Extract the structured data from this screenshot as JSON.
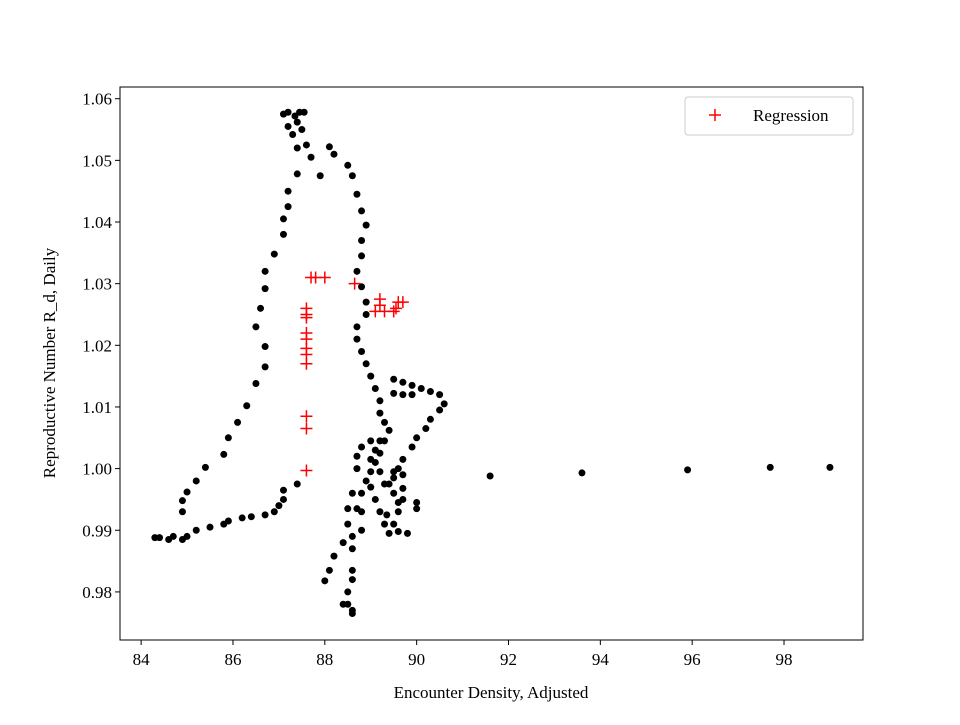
{
  "chart_data": {
    "type": "scatter",
    "xlabel": "Encounter Density, Adjusted",
    "ylabel": "Reproductive Number R_d, Daily",
    "xlim": [
      83.54,
      99.72
    ],
    "ylim": [
      0.9722,
      1.0619
    ],
    "xticks": [
      84,
      86,
      88,
      90,
      92,
      94,
      96,
      98
    ],
    "yticks": [
      0.98,
      0.99,
      {
        "value": 1,
        "label": "1.00"
      },
      1.01,
      1.02,
      1.03,
      1.04,
      1.05,
      1.06
    ],
    "legend": "upper right",
    "series": [
      {
        "color": "#000000",
        "marker": "dot",
        "x": [
          84.3,
          84.4,
          84.6,
          84.7,
          84.9,
          85.0,
          85.2,
          85.5,
          85.8,
          85.9,
          86.2,
          86.4,
          86.7,
          86.9,
          87.0,
          87.1,
          87.1,
          87.4,
          84.9,
          84.9,
          85.0,
          85.2,
          85.4,
          85.8,
          85.9,
          86.1,
          86.3,
          86.5,
          86.7,
          86.7,
          86.5,
          86.6,
          86.7,
          86.7,
          86.9,
          87.1,
          87.1,
          87.2,
          87.2,
          87.4,
          87.4,
          87.3,
          87.2,
          87.1,
          87.2,
          87.35,
          87.45,
          87.55,
          87.4,
          87.5,
          87.6,
          87.7,
          87.9,
          88.1,
          88.2,
          88.5,
          88.6,
          88.7,
          88.8,
          88.9,
          88.8,
          88.8,
          88.7,
          88.8,
          88.9,
          88.9,
          88.7,
          88.7,
          88.8,
          88.9,
          89.0,
          89.1,
          89.2,
          89.2,
          89.3,
          89.4,
          89.3,
          89.2,
          89.1,
          89.0,
          88.9,
          89.0,
          89.1,
          89.2,
          89.3,
          89.4,
          89.5,
          89.7,
          89.9,
          90.1,
          90.3,
          90.5,
          90.6,
          90.5,
          90.3,
          90.2,
          90.0,
          89.9,
          89.7,
          89.6,
          89.5,
          89.3,
          89.5,
          89.6,
          89.5,
          89.7,
          89.9,
          90.0,
          90.0,
          89.8,
          89.6,
          89.5,
          89.35,
          88.0,
          88.1,
          88.2,
          88.4,
          88.5,
          88.5,
          88.6,
          88.7,
          88.6,
          88.6,
          88.6,
          88.6,
          88.5,
          88.5,
          88.6,
          88.4,
          88.6,
          88.8,
          88.8,
          88.8,
          88.7,
          88.7,
          88.8,
          89.0,
          89.2,
          89.1,
          89.0,
          89.2,
          89.4,
          89.5,
          89.7,
          89.7,
          89.7,
          89.6,
          91.6,
          93.6,
          95.9,
          97.7,
          99.0
        ],
        "y": [
          0.9888,
          0.9888,
          0.9885,
          0.989,
          0.9885,
          0.989,
          0.99,
          0.9905,
          0.991,
          0.9915,
          0.992,
          0.9922,
          0.9925,
          0.993,
          0.994,
          0.995,
          0.9965,
          0.9975,
          0.993,
          0.9948,
          0.9962,
          0.998,
          1.0002,
          1.0023,
          1.005,
          1.0075,
          1.0102,
          1.0138,
          1.0165,
          1.0198,
          1.023,
          1.026,
          1.0292,
          1.032,
          1.0348,
          1.038,
          1.0405,
          1.0425,
          1.045,
          1.0478,
          1.052,
          1.0542,
          1.0555,
          1.0575,
          1.0578,
          1.0572,
          1.0578,
          1.0578,
          1.0562,
          1.055,
          1.0525,
          1.0505,
          1.0475,
          1.0522,
          1.051,
          1.0492,
          1.0475,
          1.0445,
          1.0418,
          1.0395,
          1.037,
          1.0345,
          1.032,
          1.0295,
          1.027,
          1.025,
          1.023,
          1.021,
          1.019,
          1.017,
          1.015,
          1.013,
          1.011,
          1.009,
          1.0075,
          1.0062,
          1.0045,
          1.0025,
          1.001,
          0.9995,
          0.998,
          0.997,
          0.995,
          0.993,
          0.991,
          0.9895,
          1.0145,
          1.014,
          1.0135,
          1.013,
          1.0125,
          1.012,
          1.0105,
          1.0095,
          1.008,
          1.0065,
          1.005,
          1.0035,
          1.0015,
          1.0,
          0.9985,
          0.9975,
          0.996,
          0.9945,
          1.0122,
          1.012,
          1.012,
          0.9935,
          0.9945,
          0.9895,
          0.9898,
          0.991,
          0.9925,
          0.9818,
          0.9835,
          0.9858,
          0.988,
          0.991,
          0.9935,
          0.996,
          0.9935,
          0.989,
          0.987,
          0.9835,
          0.982,
          0.98,
          0.978,
          0.977,
          0.978,
          0.9765,
          0.99,
          0.993,
          0.996,
          1.0,
          1.002,
          1.0035,
          1.0045,
          1.0045,
          1.003,
          1.0015,
          0.9995,
          0.9975,
          0.9995,
          0.999,
          0.9968,
          0.995,
          0.993,
          0.9988,
          0.9993,
          0.9998,
          1.0002,
          1.0002
        ]
      },
      {
        "name": "Regression",
        "color": "#ff0000",
        "marker": "plus",
        "x": [
          87.6,
          87.6,
          87.6,
          87.6,
          87.6,
          87.6,
          87.6,
          87.6,
          87.6,
          87.6,
          87.6,
          87.7,
          87.8,
          88.0,
          88.65,
          89.1,
          89.2,
          89.2,
          89.3,
          89.5,
          89.6,
          89.7,
          89.55
        ],
        "y": [
          0.9997,
          1.0065,
          1.0085,
          1.017,
          1.0185,
          1.0195,
          1.021,
          1.022,
          1.0245,
          1.025,
          1.026,
          1.031,
          1.031,
          1.031,
          1.03,
          1.0255,
          1.0265,
          1.0275,
          1.0255,
          1.0255,
          1.027,
          1.027,
          1.026
        ]
      }
    ]
  }
}
